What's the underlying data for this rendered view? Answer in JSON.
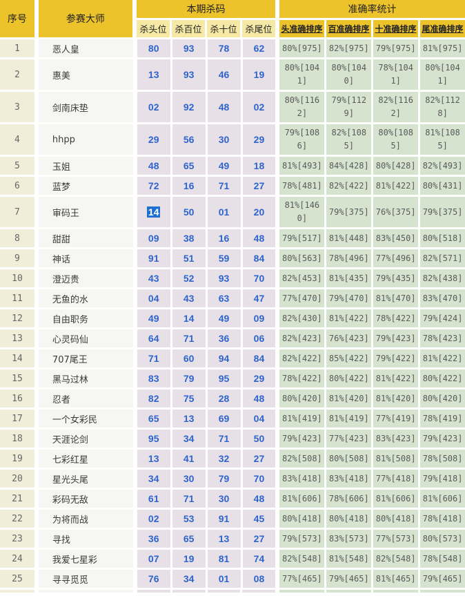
{
  "page": {
    "background": "#FFFFFF"
  },
  "colors": {
    "header_gold": "#EDC32C",
    "subheader_yellow": "#F6E9A5",
    "seq_cell": "#F0EED9",
    "master_cell": "#F6F6F3",
    "kill_cell": "#E7E0E7",
    "accuracy_cell": "#D6E3CF",
    "kill_number_blue": "#2D64CD",
    "selection_blue": "#1D6FD2",
    "accuracy_text": "#5A5A5A"
  },
  "header": {
    "seq_label": "序号",
    "master_label": "参赛大师",
    "kill_section_label": "本期杀码",
    "kill_columns": [
      "杀头位",
      "杀百位",
      "杀十位",
      "杀尾位"
    ],
    "acc_section_label": "准确率统计",
    "acc_columns": [
      "头准确排序",
      "百准确排序",
      "十准确排序",
      "尾准确排序"
    ]
  },
  "selection": {
    "row_index": 6,
    "kill_index": 0,
    "value": "14"
  },
  "rows": [
    {
      "no": "1",
      "name": "恶人皇",
      "kills": [
        "80",
        "93",
        "78",
        "62"
      ],
      "acc": [
        "80%[975]",
        "82%[975]",
        "79%[975]",
        "81%[975]"
      ]
    },
    {
      "no": "2",
      "name": "惠美",
      "kills": [
        "13",
        "93",
        "46",
        "19"
      ],
      "acc": [
        "80%[1041]",
        "80%[1040]",
        "78%[1041]",
        "80%[1041]"
      ]
    },
    {
      "no": "3",
      "name": "剑南床垫",
      "kills": [
        "02",
        "92",
        "48",
        "02"
      ],
      "acc": [
        "80%[1162]",
        "79%[1129]",
        "82%[1162]",
        "82%[1128]"
      ]
    },
    {
      "no": "4",
      "name": "hhpp",
      "kills": [
        "29",
        "56",
        "30",
        "29"
      ],
      "acc": [
        "79%[1086]",
        "82%[1085]",
        "80%[1085]",
        "81%[1085]"
      ]
    },
    {
      "no": "5",
      "name": "玉姐",
      "kills": [
        "48",
        "65",
        "49",
        "18"
      ],
      "acc": [
        "81%[493]",
        "84%[428]",
        "80%[428]",
        "82%[493]"
      ]
    },
    {
      "no": "6",
      "name": "蓝梦",
      "kills": [
        "72",
        "16",
        "71",
        "27"
      ],
      "acc": [
        "78%[481]",
        "82%[422]",
        "81%[422]",
        "80%[431]"
      ]
    },
    {
      "no": "7",
      "name": "审码王",
      "kills": [
        "14",
        "50",
        "01",
        "20"
      ],
      "acc": [
        "81%[1460]",
        "79%[375]",
        "76%[375]",
        "79%[375]"
      ]
    },
    {
      "no": "8",
      "name": "甜甜",
      "kills": [
        "09",
        "38",
        "16",
        "48"
      ],
      "acc": [
        "79%[517]",
        "81%[448]",
        "83%[450]",
        "80%[518]"
      ]
    },
    {
      "no": "9",
      "name": "神话",
      "kills": [
        "91",
        "51",
        "59",
        "84"
      ],
      "acc": [
        "80%[563]",
        "78%[496]",
        "77%[496]",
        "82%[571]"
      ]
    },
    {
      "no": "10",
      "name": "澄迈贵",
      "kills": [
        "43",
        "52",
        "93",
        "70"
      ],
      "acc": [
        "82%[453]",
        "81%[435]",
        "79%[435]",
        "82%[438]"
      ]
    },
    {
      "no": "11",
      "name": "无鱼的水",
      "kills": [
        "04",
        "43",
        "63",
        "47"
      ],
      "acc": [
        "77%[470]",
        "79%[470]",
        "81%[470]",
        "83%[470]"
      ]
    },
    {
      "no": "12",
      "name": "自由职务",
      "kills": [
        "49",
        "14",
        "49",
        "09"
      ],
      "acc": [
        "82%[430]",
        "81%[422]",
        "78%[422]",
        "79%[424]"
      ]
    },
    {
      "no": "13",
      "name": "心灵码仙",
      "kills": [
        "64",
        "71",
        "36",
        "06"
      ],
      "acc": [
        "82%[423]",
        "76%[423]",
        "79%[423]",
        "78%[423]"
      ]
    },
    {
      "no": "14",
      "name": "707尾王",
      "kills": [
        "71",
        "60",
        "94",
        "84"
      ],
      "acc": [
        "82%[422]",
        "85%[422]",
        "79%[422]",
        "81%[422]"
      ]
    },
    {
      "no": "15",
      "name": "黑马过林",
      "kills": [
        "83",
        "79",
        "95",
        "29"
      ],
      "acc": [
        "78%[422]",
        "80%[422]",
        "81%[422]",
        "80%[422]"
      ]
    },
    {
      "no": "16",
      "name": "忍者",
      "kills": [
        "82",
        "75",
        "28",
        "48"
      ],
      "acc": [
        "80%[420]",
        "81%[420]",
        "81%[420]",
        "80%[420]"
      ]
    },
    {
      "no": "17",
      "name": "一个女彩民",
      "kills": [
        "65",
        "13",
        "69",
        "04"
      ],
      "acc": [
        "81%[419]",
        "81%[419]",
        "77%[419]",
        "78%[419]"
      ]
    },
    {
      "no": "18",
      "name": "天涯论剑",
      "kills": [
        "95",
        "34",
        "71",
        "50"
      ],
      "acc": [
        "79%[423]",
        "77%[423]",
        "83%[423]",
        "79%[423]"
      ]
    },
    {
      "no": "19",
      "name": "七彩红星",
      "kills": [
        "13",
        "41",
        "32",
        "27"
      ],
      "acc": [
        "82%[508]",
        "80%[508]",
        "81%[508]",
        "78%[508]"
      ]
    },
    {
      "no": "20",
      "name": "星光头尾",
      "kills": [
        "34",
        "30",
        "79",
        "70"
      ],
      "acc": [
        "83%[418]",
        "83%[418]",
        "77%[418]",
        "79%[418]"
      ]
    },
    {
      "no": "21",
      "name": "彩码无敌",
      "kills": [
        "61",
        "71",
        "30",
        "48"
      ],
      "acc": [
        "81%[606]",
        "78%[606]",
        "81%[606]",
        "81%[606]"
      ]
    },
    {
      "no": "22",
      "name": "为将而战",
      "kills": [
        "02",
        "53",
        "91",
        "45"
      ],
      "acc": [
        "80%[418]",
        "80%[418]",
        "80%[418]",
        "78%[418]"
      ]
    },
    {
      "no": "23",
      "name": "寻找",
      "kills": [
        "36",
        "65",
        "13",
        "27"
      ],
      "acc": [
        "79%[573]",
        "83%[573]",
        "77%[573]",
        "80%[573]"
      ]
    },
    {
      "no": "24",
      "name": "我爱七星彩",
      "kills": [
        "07",
        "19",
        "81",
        "74"
      ],
      "acc": [
        "82%[548]",
        "81%[548]",
        "82%[548]",
        "78%[548]"
      ]
    },
    {
      "no": "25",
      "name": "寻寻觅觅",
      "kills": [
        "76",
        "34",
        "01",
        "08"
      ],
      "acc": [
        "77%[465]",
        "79%[465]",
        "81%[465]",
        "79%[465]"
      ]
    }
  ]
}
